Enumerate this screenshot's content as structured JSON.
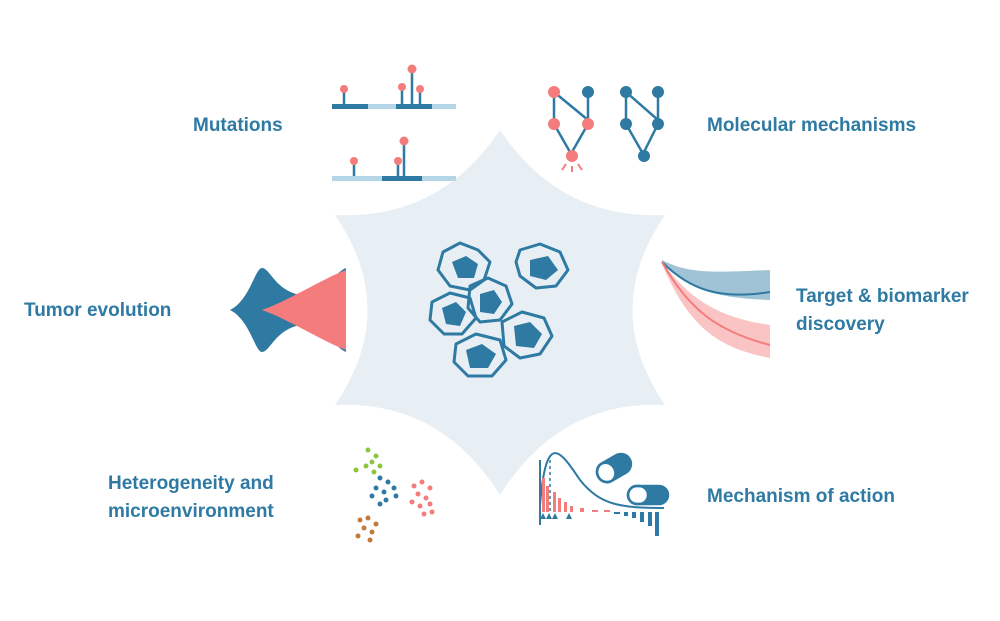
{
  "labels": {
    "mutations": "Mutations",
    "molecular_mechanisms": "Molecular mechanisms",
    "tumor_evolution": "Tumor evolution",
    "target_line1": "Target & biomarker",
    "target_line2": "discovery",
    "heterogeneity_line1": "Heterogeneity and",
    "heterogeneity_line2": "microenvironment",
    "mechanism_of_action": "Mechanism of action"
  },
  "colors": {
    "blue": "#2e7aa3",
    "pink": "#f47c7c",
    "light_blue": "#b5d6e6",
    "star_fill": "#e8eff4",
    "green": "#8cc63f",
    "brown": "#c47a3a"
  },
  "icons": {
    "center": "cancer-cells-icon",
    "mutations": "lollipop-plot-icon",
    "molecular": "pathway-network-icon",
    "evolution": "fish-plot-icon",
    "target": "survival-curve-icon",
    "heterogeneity": "cell-clusters-icon",
    "moa": "drug-capsule-enrichment-icon"
  }
}
